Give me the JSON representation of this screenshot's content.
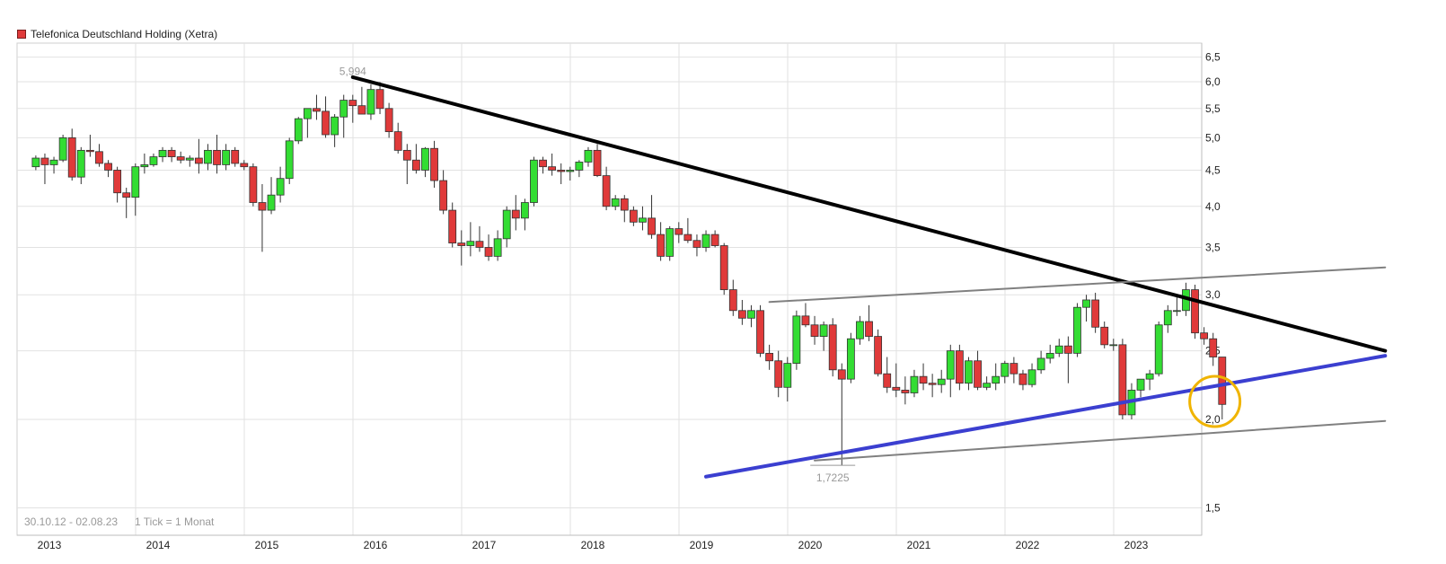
{
  "legend": {
    "label": "Telefonica Deutschland Holding (Xetra)",
    "color": "#e03a3a"
  },
  "footer": {
    "range": "30.10.12 - 02.08.23",
    "tick": "1 Tick = 1 Monat"
  },
  "chart_data": {
    "type": "candlestick",
    "title": "Telefonica Deutschland Holding (Xetra)",
    "x_labels": [
      "2013",
      "2014",
      "2015",
      "2016",
      "2017",
      "2018",
      "2019",
      "2020",
      "2021",
      "2022",
      "2023"
    ],
    "y_ticks": [
      1.5,
      2.0,
      2.5,
      3.0,
      3.5,
      4.0,
      4.5,
      5.0,
      5.5,
      6.0,
      6.5
    ],
    "y_tick_labels": [
      "1,5",
      "2,0",
      "2,5",
      "3,0",
      "3,5",
      "4,0",
      "4,5",
      "5,0",
      "5,5",
      "6,0",
      "6,5"
    ],
    "ylim": [
      1.4,
      6.7
    ],
    "y_scale": "log",
    "grid": true,
    "up_color": "#33dd33",
    "down_color": "#e03a3a",
    "annotations": [
      {
        "label": "5,994",
        "value": 5.994,
        "date": "2015-10"
      },
      {
        "label": "1,7225",
        "value": 1.7225,
        "date": "2020-03"
      }
    ],
    "series": [
      {
        "type": "ohlc",
        "start": "2012-11",
        "interval": "month",
        "values": [
          [
            4.55,
            4.72,
            4.5,
            4.68
          ],
          [
            4.68,
            4.75,
            4.3,
            4.58
          ],
          [
            4.58,
            4.7,
            4.45,
            4.65
          ],
          [
            4.65,
            5.05,
            4.62,
            5.0
          ],
          [
            5.0,
            5.15,
            4.35,
            4.4
          ],
          [
            4.4,
            4.85,
            4.3,
            4.8
          ],
          [
            4.8,
            5.05,
            4.7,
            4.78
          ],
          [
            4.78,
            4.9,
            4.55,
            4.6
          ],
          [
            4.6,
            4.65,
            4.4,
            4.5
          ],
          [
            4.5,
            4.55,
            4.05,
            4.18
          ],
          [
            4.18,
            4.25,
            3.85,
            4.12
          ],
          [
            4.12,
            4.6,
            3.88,
            4.55
          ],
          [
            4.55,
            4.75,
            4.45,
            4.58
          ],
          [
            4.58,
            4.75,
            4.55,
            4.7
          ],
          [
            4.7,
            4.85,
            4.62,
            4.8
          ],
          [
            4.8,
            4.85,
            4.62,
            4.7
          ],
          [
            4.7,
            4.78,
            4.6,
            4.65
          ],
          [
            4.65,
            4.72,
            4.55,
            4.68
          ],
          [
            4.68,
            4.98,
            4.45,
            4.6
          ],
          [
            4.6,
            4.9,
            4.5,
            4.8
          ],
          [
            4.8,
            5.05,
            4.45,
            4.58
          ],
          [
            4.58,
            4.9,
            4.5,
            4.8
          ],
          [
            4.8,
            4.85,
            4.55,
            4.6
          ],
          [
            4.6,
            4.65,
            4.5,
            4.55
          ],
          [
            4.55,
            4.6,
            4.0,
            4.05
          ],
          [
            4.05,
            4.3,
            3.45,
            3.95
          ],
          [
            3.95,
            4.4,
            3.9,
            4.15
          ],
          [
            4.15,
            4.55,
            4.05,
            4.38
          ],
          [
            4.38,
            5.0,
            4.3,
            4.95
          ],
          [
            4.95,
            5.35,
            4.9,
            5.32
          ],
          [
            5.32,
            5.5,
            5.0,
            5.5
          ],
          [
            5.5,
            5.75,
            5.3,
            5.45
          ],
          [
            5.45,
            5.72,
            5.0,
            5.05
          ],
          [
            5.05,
            5.4,
            4.85,
            5.35
          ],
          [
            5.35,
            5.75,
            5.0,
            5.65
          ],
          [
            5.65,
            5.75,
            5.25,
            5.55
          ],
          [
            5.55,
            5.9,
            5.4,
            5.4
          ],
          [
            5.4,
            5.95,
            5.3,
            5.85
          ],
          [
            5.85,
            5.994,
            5.4,
            5.5
          ],
          [
            5.5,
            5.6,
            5.0,
            5.1
          ],
          [
            5.1,
            5.25,
            4.75,
            4.8
          ],
          [
            4.8,
            4.9,
            4.3,
            4.65
          ],
          [
            4.65,
            4.9,
            4.45,
            4.5
          ],
          [
            4.5,
            4.85,
            4.4,
            4.83
          ],
          [
            4.83,
            4.95,
            4.25,
            4.35
          ],
          [
            4.35,
            4.5,
            3.9,
            3.95
          ],
          [
            3.95,
            4.05,
            3.5,
            3.55
          ],
          [
            3.55,
            3.7,
            3.3,
            3.52
          ],
          [
            3.52,
            3.8,
            3.4,
            3.57
          ],
          [
            3.57,
            3.75,
            3.45,
            3.5
          ],
          [
            3.5,
            3.65,
            3.35,
            3.4
          ],
          [
            3.4,
            3.7,
            3.35,
            3.6
          ],
          [
            3.6,
            4.0,
            3.5,
            3.95
          ],
          [
            3.95,
            4.15,
            3.7,
            3.85
          ],
          [
            3.85,
            4.1,
            3.7,
            4.05
          ],
          [
            4.05,
            4.7,
            4.0,
            4.65
          ],
          [
            4.65,
            4.7,
            4.45,
            4.55
          ],
          [
            4.55,
            4.75,
            4.42,
            4.5
          ],
          [
            4.5,
            4.6,
            4.3,
            4.48
          ],
          [
            4.48,
            4.55,
            4.35,
            4.5
          ],
          [
            4.5,
            4.65,
            4.4,
            4.62
          ],
          [
            4.62,
            4.85,
            4.55,
            4.8
          ],
          [
            4.8,
            4.9,
            4.4,
            4.42
          ],
          [
            4.42,
            4.55,
            3.95,
            4.0
          ],
          [
            4.0,
            4.15,
            3.95,
            4.1
          ],
          [
            4.1,
            4.15,
            3.8,
            3.95
          ],
          [
            3.95,
            4.0,
            3.75,
            3.8
          ],
          [
            3.8,
            4.0,
            3.7,
            3.85
          ],
          [
            3.85,
            4.15,
            3.6,
            3.65
          ],
          [
            3.65,
            3.8,
            3.35,
            3.4
          ],
          [
            3.4,
            3.75,
            3.35,
            3.72
          ],
          [
            3.72,
            3.8,
            3.55,
            3.65
          ],
          [
            3.65,
            3.85,
            3.55,
            3.58
          ],
          [
            3.58,
            3.65,
            3.4,
            3.5
          ],
          [
            3.5,
            3.7,
            3.45,
            3.65
          ],
          [
            3.65,
            3.7,
            3.5,
            3.52
          ],
          [
            3.52,
            3.55,
            3.0,
            3.05
          ],
          [
            3.05,
            3.15,
            2.8,
            2.85
          ],
          [
            2.85,
            2.95,
            2.72,
            2.78
          ],
          [
            2.78,
            2.9,
            2.7,
            2.85
          ],
          [
            2.85,
            2.9,
            2.45,
            2.48
          ],
          [
            2.48,
            2.55,
            2.35,
            2.42
          ],
          [
            2.42,
            2.5,
            2.15,
            2.22
          ],
          [
            2.22,
            2.45,
            2.12,
            2.4
          ],
          [
            2.4,
            2.85,
            2.35,
            2.8
          ],
          [
            2.8,
            2.92,
            2.7,
            2.72
          ],
          [
            2.72,
            2.8,
            2.55,
            2.62
          ],
          [
            2.62,
            2.75,
            2.5,
            2.72
          ],
          [
            2.72,
            2.78,
            2.3,
            2.35
          ],
          [
            2.35,
            2.4,
            1.7225,
            2.28
          ],
          [
            2.28,
            2.65,
            2.25,
            2.6
          ],
          [
            2.6,
            2.8,
            2.55,
            2.75
          ],
          [
            2.75,
            2.9,
            2.58,
            2.62
          ],
          [
            2.62,
            2.68,
            2.3,
            2.32
          ],
          [
            2.32,
            2.45,
            2.18,
            2.22
          ],
          [
            2.22,
            2.4,
            2.15,
            2.2
          ],
          [
            2.2,
            2.3,
            2.1,
            2.18
          ],
          [
            2.18,
            2.35,
            2.15,
            2.3
          ],
          [
            2.3,
            2.4,
            2.2,
            2.25
          ],
          [
            2.25,
            2.32,
            2.15,
            2.24
          ],
          [
            2.24,
            2.35,
            2.18,
            2.28
          ],
          [
            2.28,
            2.55,
            2.15,
            2.5
          ],
          [
            2.5,
            2.55,
            2.2,
            2.25
          ],
          [
            2.25,
            2.45,
            2.2,
            2.42
          ],
          [
            2.42,
            2.5,
            2.2,
            2.22
          ],
          [
            2.22,
            2.3,
            2.2,
            2.25
          ],
          [
            2.25,
            2.4,
            2.2,
            2.3
          ],
          [
            2.3,
            2.42,
            2.25,
            2.4
          ],
          [
            2.4,
            2.45,
            2.25,
            2.32
          ],
          [
            2.32,
            2.35,
            2.2,
            2.24
          ],
          [
            2.24,
            2.4,
            2.22,
            2.35
          ],
          [
            2.35,
            2.5,
            2.32,
            2.44
          ],
          [
            2.44,
            2.55,
            2.4,
            2.48
          ],
          [
            2.48,
            2.6,
            2.45,
            2.54
          ],
          [
            2.54,
            2.62,
            2.25,
            2.48
          ],
          [
            2.48,
            2.92,
            2.45,
            2.88
          ],
          [
            2.88,
            3.0,
            2.75,
            2.95
          ],
          [
            2.95,
            3.02,
            2.65,
            2.7
          ],
          [
            2.7,
            2.75,
            2.52,
            2.55
          ],
          [
            2.55,
            2.6,
            2.5,
            2.55
          ],
          [
            2.55,
            2.6,
            2.0,
            2.03
          ],
          [
            2.03,
            2.25,
            2.0,
            2.2
          ],
          [
            2.2,
            2.25,
            2.15,
            2.28
          ],
          [
            2.28,
            2.35,
            2.2,
            2.32
          ],
          [
            2.32,
            2.75,
            2.3,
            2.72
          ],
          [
            2.72,
            2.9,
            2.65,
            2.85
          ],
          [
            2.85,
            2.98,
            2.8,
            2.85
          ],
          [
            2.85,
            3.12,
            2.8,
            3.05
          ],
          [
            3.05,
            3.1,
            2.6,
            2.65
          ],
          [
            2.65,
            2.7,
            2.55,
            2.6
          ],
          [
            2.6,
            2.65,
            2.38,
            2.45
          ],
          [
            2.45,
            2.45,
            2.0,
            2.1
          ]
        ]
      }
    ],
    "trendlines": [
      {
        "color": "#000000",
        "from": [
          "2015-10",
          6.09
        ],
        "to": [
          "2025-04",
          2.5
        ]
      },
      {
        "color": "#3b3fd0",
        "from": [
          "2019-01",
          1.66
        ],
        "to": [
          "2025-04",
          2.46
        ]
      },
      {
        "color": "#808080",
        "from": [
          "2019-08",
          2.93
        ],
        "to": [
          "2025-04",
          3.28
        ]
      },
      {
        "color": "#808080",
        "from": [
          "2020-01",
          1.75
        ],
        "to": [
          "2025-04",
          1.99
        ]
      }
    ],
    "marker": {
      "shape": "circle",
      "color": "#f0b400",
      "date": "2023-08",
      "value": 2.12
    }
  }
}
